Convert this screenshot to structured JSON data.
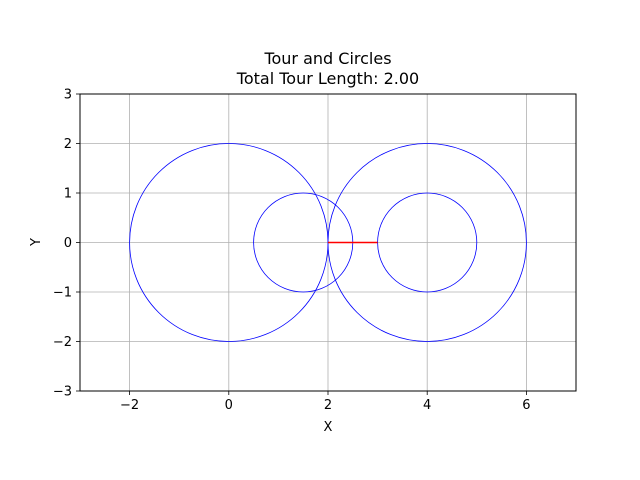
{
  "chart_data": {
    "type": "scatter",
    "title": "Tour and Circles",
    "subtitle": "Total Tour Length: 2.00",
    "xlabel": "X",
    "ylabel": "Y",
    "xlim": [
      -3,
      7
    ],
    "ylim": [
      -3,
      3
    ],
    "xticks": [
      -2,
      0,
      2,
      4,
      6
    ],
    "xtick_labels": [
      "−2",
      "0",
      "2",
      "4",
      "6"
    ],
    "yticks": [
      -3,
      -2,
      -1,
      0,
      1,
      2,
      3
    ],
    "ytick_labels": [
      "−3",
      "−2",
      "−1",
      "0",
      "1",
      "2",
      "3"
    ],
    "grid": true,
    "circles": [
      {
        "cx": 0,
        "cy": 0,
        "r": 2
      },
      {
        "cx": 1.5,
        "cy": 0,
        "r": 1
      },
      {
        "cx": 4,
        "cy": 0,
        "r": 2
      },
      {
        "cx": 4,
        "cy": 0,
        "r": 1
      }
    ],
    "tour": {
      "x": [
        2,
        3
      ],
      "y": [
        0,
        0
      ]
    },
    "colors": {
      "circles": "#0000ff",
      "tour": "#ff0000",
      "grid": "#b0b0b0"
    }
  }
}
